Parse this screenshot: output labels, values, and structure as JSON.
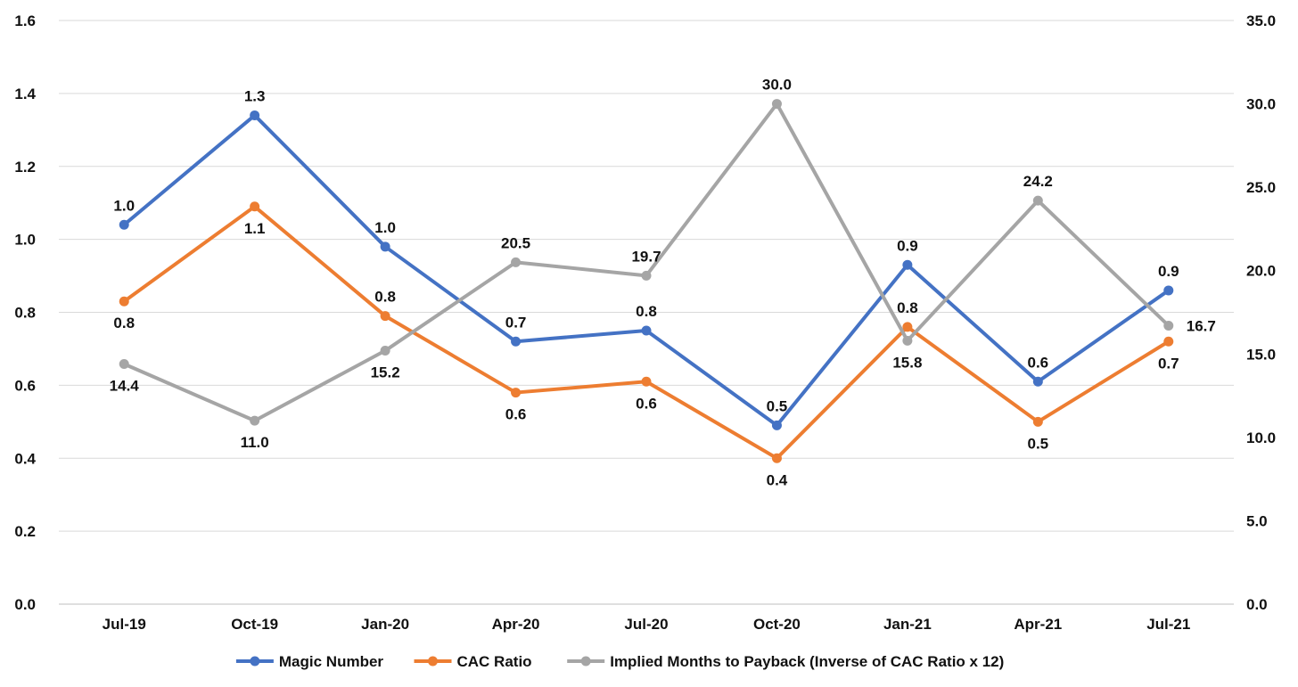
{
  "chart_data": {
    "type": "line",
    "title": "",
    "xlabel": "",
    "ylabel": "",
    "y2label": "",
    "categories": [
      "Jul-19",
      "Oct-19",
      "Jan-20",
      "Apr-20",
      "Jul-20",
      "Oct-20",
      "Jan-21",
      "Apr-21",
      "Jul-21"
    ],
    "y_axis_left": {
      "min": 0,
      "max": 1.6,
      "step": 0.2,
      "tick_labels": [
        "0.0",
        "0.2",
        "0.4",
        "0.6",
        "0.8",
        "1.0",
        "1.2",
        "1.4",
        "1.6"
      ]
    },
    "y_axis_right": {
      "min": 0,
      "max": 35,
      "step": 5,
      "tick_labels": [
        "0.0",
        "5.0",
        "10.0",
        "15.0",
        "20.0",
        "25.0",
        "30.0",
        "35.0"
      ]
    },
    "grid": true,
    "legend_position": "bottom",
    "series": [
      {
        "name": "Magic Number",
        "axis": "left",
        "color": "#4472c4",
        "values": [
          1.04,
          1.34,
          0.98,
          0.72,
          0.75,
          0.49,
          0.93,
          0.61,
          0.86
        ],
        "labels": [
          "1.0",
          "1.3",
          "1.0",
          "0.7",
          "0.8",
          "0.5",
          "0.9",
          "0.6",
          "0.9"
        ]
      },
      {
        "name": "CAC Ratio",
        "axis": "left",
        "color": "#ed7d31",
        "values": [
          0.83,
          1.09,
          0.79,
          0.58,
          0.61,
          0.4,
          0.76,
          0.5,
          0.72
        ],
        "labels": [
          "0.8",
          "1.1",
          "0.8",
          "0.6",
          "0.6",
          "0.4",
          "0.8",
          "0.5",
          "0.7"
        ]
      },
      {
        "name": "Implied Months to Payback (Inverse of CAC Ratio x 12)",
        "axis": "right",
        "color": "#a5a5a5",
        "values": [
          14.4,
          11.0,
          15.2,
          20.5,
          19.7,
          30.0,
          15.8,
          24.2,
          16.7
        ],
        "labels": [
          "14.4",
          "11.0",
          "15.2",
          "20.5",
          "19.7",
          "30.0",
          "15.8",
          "24.2",
          "16.7"
        ]
      }
    ]
  }
}
